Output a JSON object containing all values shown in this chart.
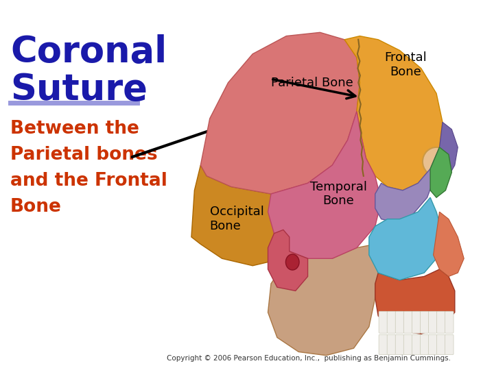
{
  "background_color": "#ffffff",
  "title_line1": "Coronal",
  "title_line2": "Suture",
  "title_color": "#1a1aaa",
  "title_fontsize": 38,
  "underline_color": "#9999dd",
  "underline_lw": 5,
  "subtitle_text": "Between the\nParietal bones\nand the Frontal\nBone",
  "subtitle_color": "#cc3300",
  "subtitle_fontsize": 19,
  "label_parietal_text": "Parietal Bone",
  "label_frontal_text": "Frontal\nBone",
  "label_temporal_text": "Temporal\nBone",
  "label_occipital_text": "Occipital\nBone",
  "label_fontsize": 13,
  "label_color": "#000000",
  "copyright_text": "Copyright © 2006 Pearson Education, Inc.,  publishing as Benjamin Cummings.",
  "copyright_fontsize": 7.5,
  "color_parietal": "#d97575",
  "color_occipital": "#cc8822",
  "color_frontal": "#e8a030",
  "color_temporal": "#d06888",
  "color_sphenoid": "#9988bb",
  "color_zygomatic": "#60b8d8",
  "color_green": "#55aa55",
  "color_maxilla": "#cc5533",
  "color_mandible": "#c8a080",
  "color_skin": "#d4956a",
  "color_teeth": "#f0eeea",
  "color_ear": "#cc5566",
  "color_purple_small": "#7766aa"
}
